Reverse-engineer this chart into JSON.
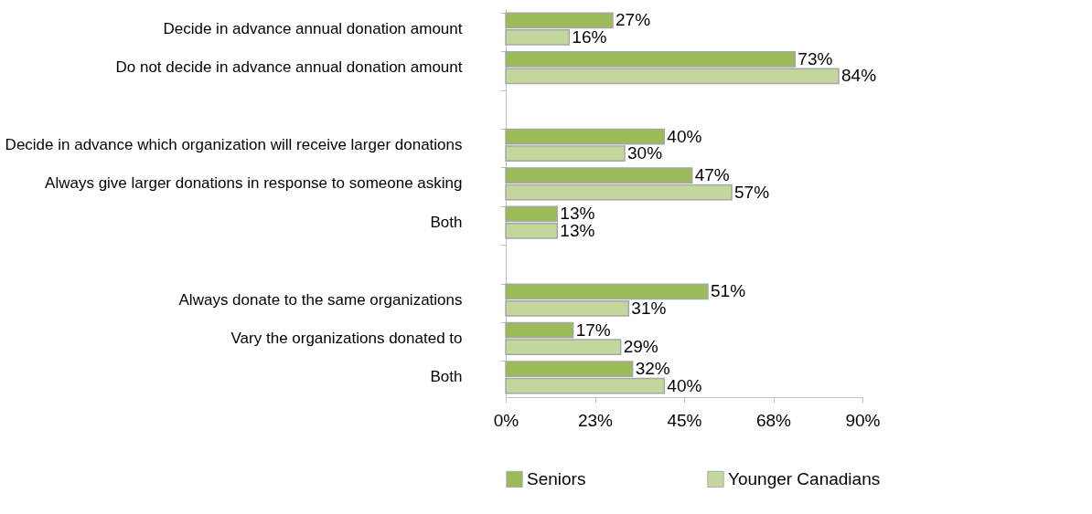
{
  "chart_data": {
    "type": "bar",
    "orientation": "horizontal",
    "categories": [
      "Decide in advance annual donation amount",
      "Do not decide in advance annual donation amount",
      null,
      "Decide in advance which organization will receive larger donations",
      "Always give larger donations in response to someone asking",
      "Both",
      null,
      "Always donate to the same organizations",
      "Vary the organizations donated to",
      "Both"
    ],
    "series": [
      {
        "name": "Seniors",
        "color": "#9bbb59",
        "values": [
          27,
          73,
          null,
          40,
          47,
          13,
          null,
          51,
          17,
          32
        ],
        "value_labels": [
          "27%",
          "73%",
          null,
          "40%",
          "47%",
          "13%",
          null,
          "51%",
          "17%",
          "32%"
        ]
      },
      {
        "name": "Younger Canadians",
        "color": "#c3d69b",
        "values": [
          16,
          84,
          null,
          30,
          57,
          13,
          null,
          31,
          29,
          40
        ],
        "value_labels": [
          "16%",
          "84%",
          null,
          "30%",
          "57%",
          "13%",
          null,
          "31%",
          "29%",
          "40%"
        ]
      }
    ],
    "xlim": [
      0,
      90
    ],
    "xticks": [
      {
        "value": 0,
        "label": "0%"
      },
      {
        "value": 22.5,
        "label": "23%"
      },
      {
        "value": 45,
        "label": "45%"
      },
      {
        "value": 67.5,
        "label": "68%"
      },
      {
        "value": 90,
        "label": "90%"
      }
    ],
    "grid": false,
    "legend": "bottom"
  }
}
